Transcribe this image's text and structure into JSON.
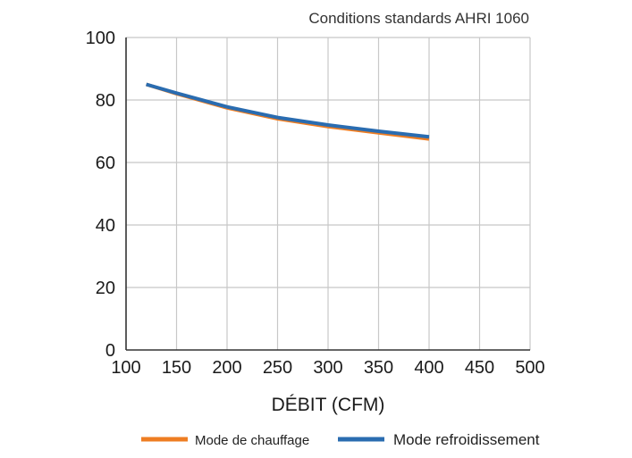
{
  "chart_data": {
    "type": "line",
    "subtitle": "Conditions standards AHRI 1060",
    "xlabel": "DÉBIT (CFM)",
    "ylabel": "",
    "xlim": [
      100,
      500
    ],
    "ylim": [
      0,
      100
    ],
    "x_ticks": [
      "100",
      "150",
      "200",
      "250",
      "300",
      "350",
      "400",
      "450",
      "500"
    ],
    "y_ticks": [
      "0",
      "20",
      "40",
      "60",
      "80",
      "100"
    ],
    "grid": true,
    "legend_position": "bottom",
    "series": [
      {
        "name": "Mode de chauffage",
        "color": "#ee7d22",
        "points": [
          [
            120,
            85
          ],
          [
            150,
            82
          ],
          [
            200,
            77.5
          ],
          [
            250,
            74
          ],
          [
            300,
            71.5
          ],
          [
            350,
            69.5
          ],
          [
            400,
            67.5
          ]
        ]
      },
      {
        "name": "Mode refroidissement",
        "color": "#2a6cb0",
        "points": [
          [
            120,
            85
          ],
          [
            150,
            82.2
          ],
          [
            200,
            77.8
          ],
          [
            250,
            74.4
          ],
          [
            300,
            72
          ],
          [
            350,
            70
          ],
          [
            400,
            68.2
          ]
        ]
      }
    ]
  }
}
